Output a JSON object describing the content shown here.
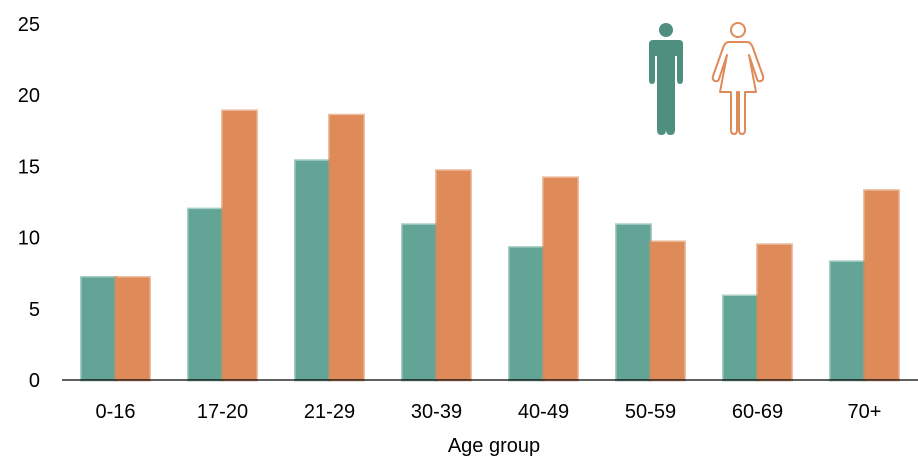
{
  "chart_data": {
    "type": "bar",
    "title": "",
    "xlabel": "Age group",
    "ylabel": "",
    "ylim": [
      0,
      25
    ],
    "yticks": [
      0,
      5,
      10,
      15,
      20,
      25
    ],
    "categories": [
      "0-16",
      "17-20",
      "21-29",
      "30-39",
      "40-49",
      "50-59",
      "60-69",
      "70+"
    ],
    "series": [
      {
        "key": "male",
        "color": "#62a597",
        "values": [
          7.2,
          12.0,
          15.4,
          10.9,
          9.3,
          10.9,
          5.9,
          8.3
        ]
      },
      {
        "key": "female",
        "color": "#de8b59",
        "values": [
          7.2,
          18.9,
          18.6,
          14.7,
          14.2,
          9.7,
          9.5,
          13.3
        ]
      }
    ],
    "legend": {
      "placement": "top-right",
      "icons": [
        {
          "name": "male-figure-icon",
          "color": "#4e8f80"
        },
        {
          "name": "female-figure-icon",
          "color": "#de8b59"
        }
      ]
    },
    "grid": false
  }
}
